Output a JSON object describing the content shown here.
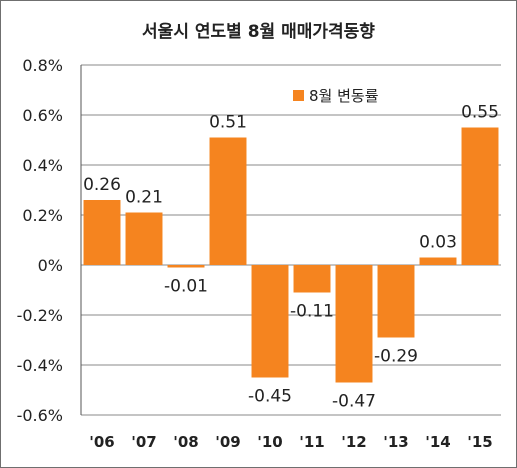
{
  "chart_data": {
    "type": "bar",
    "title": "서울시 연도별 8월 매매가격동향",
    "categories": [
      "'06",
      "'07",
      "'08",
      "'09",
      "'10",
      "'11",
      "'12",
      "'13",
      "'14",
      "'15"
    ],
    "series": [
      {
        "name": "8월 변동률",
        "values": [
          0.26,
          0.21,
          -0.01,
          0.51,
          -0.45,
          -0.11,
          -0.47,
          -0.29,
          0.03,
          0.55
        ],
        "data_labels": [
          "0.26",
          "0.21",
          "-0.01",
          "0.51",
          "-0.45",
          "-0.11",
          "-0.47",
          "-0.29",
          "0.03",
          "0.55"
        ]
      }
    ],
    "y_ticks": [
      0.8,
      0.6,
      0.4,
      0.2,
      0,
      -0.2,
      -0.4,
      -0.6
    ],
    "y_tick_labels": [
      "0.8%",
      "0.6%",
      "0.4%",
      "0.2%",
      "0%",
      "-0.2%",
      "-0.4%",
      "-0.6%"
    ],
    "ylim": [
      -0.6,
      0.8
    ],
    "grid": true,
    "legend_position": "top-right",
    "colors": {
      "bar": "#F5841F",
      "grid": "#8a8a8a",
      "axis": "#555555"
    }
  }
}
